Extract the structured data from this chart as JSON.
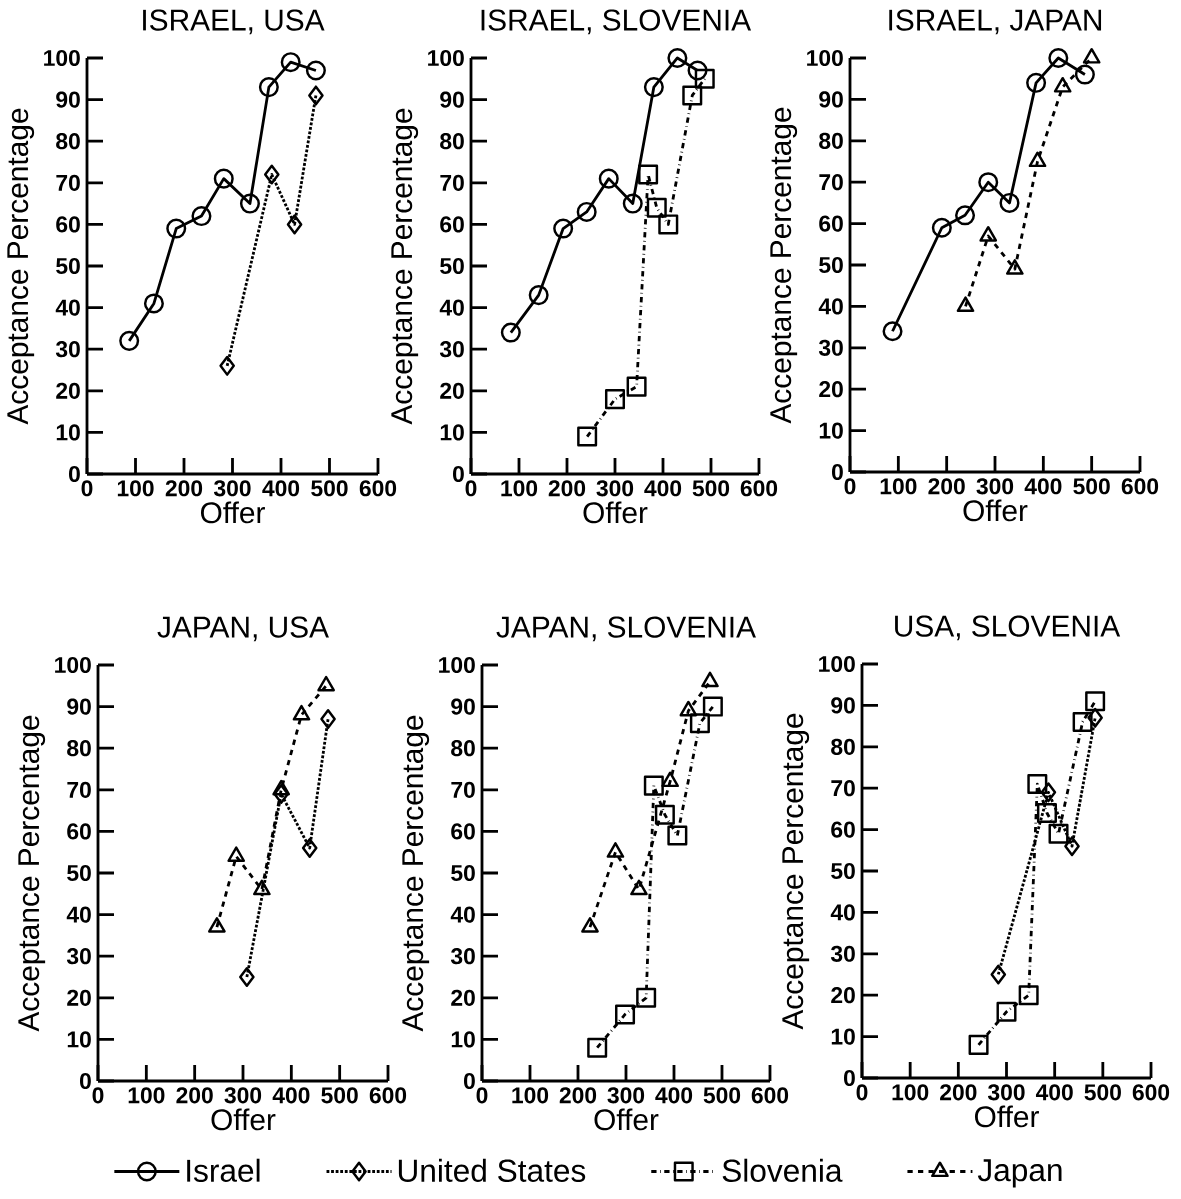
{
  "chart_data": [
    {
      "type": "line",
      "title": "ISRAEL, USA",
      "xlabel": "Offer",
      "ylabel": "Acceptance Percentage",
      "xlim": [
        0,
        600
      ],
      "ylim": [
        0,
        100
      ],
      "xticks": [
        0,
        100,
        200,
        300,
        400,
        500,
        600
      ],
      "yticks": [
        0,
        10,
        20,
        30,
        40,
        50,
        60,
        70,
        80,
        90,
        100
      ],
      "legend": "bottom",
      "series": [
        {
          "name": "Israel",
          "color": "#000000",
          "marker": "circle",
          "line_style": "solid",
          "x": [
            87,
            138,
            184,
            236,
            282,
            336,
            375,
            420,
            472
          ],
          "values": [
            32,
            41,
            59,
            62,
            71,
            65,
            93,
            99,
            97
          ]
        },
        {
          "name": "United States",
          "color": "#000000",
          "marker": "diamond",
          "line_style": "dotted",
          "x": [
            289,
            381,
            428,
            472
          ],
          "values": [
            26,
            72,
            60,
            91
          ]
        }
      ]
    },
    {
      "type": "line",
      "title": "ISRAEL, SLOVENIA",
      "xlabel": "Offer",
      "ylabel": "Acceptance Percentage",
      "xlim": [
        0,
        600
      ],
      "ylim": [
        0,
        100
      ],
      "xticks": [
        0,
        100,
        200,
        300,
        400,
        500,
        600
      ],
      "yticks": [
        0,
        10,
        20,
        30,
        40,
        50,
        60,
        70,
        80,
        90,
        100
      ],
      "legend": "bottom",
      "series": [
        {
          "name": "Israel",
          "color": "#000000",
          "marker": "circle",
          "line_style": "solid",
          "x": [
            83,
            141,
            192,
            241,
            287,
            337,
            381,
            430,
            472
          ],
          "values": [
            34,
            43,
            59,
            63,
            71,
            65,
            93,
            100,
            97
          ]
        },
        {
          "name": "Slovenia",
          "color": "#000000",
          "marker": "square",
          "line_style": "dashdot",
          "x": [
            242,
            300,
            345,
            369,
            387,
            411,
            461,
            487
          ],
          "values": [
            9,
            18,
            21,
            72,
            64,
            60,
            91,
            95
          ]
        }
      ]
    },
    {
      "type": "line",
      "title": "ISRAEL, JAPAN",
      "xlabel": "Offer",
      "ylabel": "Acceptance Percentage",
      "xlim": [
        0,
        600
      ],
      "ylim": [
        0,
        100
      ],
      "xticks": [
        0,
        100,
        200,
        300,
        400,
        500,
        600
      ],
      "yticks": [
        0,
        10,
        20,
        30,
        40,
        50,
        60,
        70,
        80,
        90,
        100
      ],
      "legend": "bottom",
      "series": [
        {
          "name": "Israel",
          "color": "#000000",
          "marker": "circle",
          "line_style": "solid",
          "x": [
            88,
            190,
            238,
            286,
            330,
            385,
            431,
            486
          ],
          "values": [
            34,
            59,
            62,
            70,
            65,
            94,
            100,
            96
          ]
        },
        {
          "name": "Japan",
          "color": "#000000",
          "marker": "triangle",
          "line_style": "dashed",
          "x": [
            239,
            286,
            341,
            388,
            440,
            500
          ],
          "values": [
            40,
            57,
            49,
            75,
            93,
            100
          ]
        }
      ]
    },
    {
      "type": "line",
      "title": "JAPAN, USA",
      "xlabel": "Offer",
      "ylabel": "Acceptance Percentage",
      "xlim": [
        0,
        600
      ],
      "ylim": [
        0,
        100
      ],
      "xticks": [
        0,
        100,
        200,
        300,
        400,
        500,
        600
      ],
      "yticks": [
        0,
        10,
        20,
        30,
        40,
        50,
        60,
        70,
        80,
        90,
        100
      ],
      "legend": "bottom",
      "series": [
        {
          "name": "Japan",
          "color": "#000000",
          "marker": "triangle",
          "line_style": "dashed",
          "x": [
            246,
            286,
            339,
            379,
            421,
            472
          ],
          "values": [
            37,
            54,
            46,
            70,
            88,
            95
          ]
        },
        {
          "name": "United States",
          "color": "#000000",
          "marker": "diamond",
          "line_style": "dotted",
          "x": [
            308,
            379,
            438,
            476
          ],
          "values": [
            25,
            69,
            56,
            87
          ]
        }
      ]
    },
    {
      "type": "line",
      "title": "JAPAN, SLOVENIA",
      "xlabel": "Offer",
      "ylabel": "Acceptance Percentage",
      "xlim": [
        0,
        600
      ],
      "ylim": [
        0,
        100
      ],
      "xticks": [
        0,
        100,
        200,
        300,
        400,
        500,
        600
      ],
      "yticks": [
        0,
        10,
        20,
        30,
        40,
        50,
        60,
        70,
        80,
        90,
        100
      ],
      "legend": "bottom",
      "series": [
        {
          "name": "Japan",
          "color": "#000000",
          "marker": "triangle",
          "line_style": "dashed",
          "x": [
            225,
            278,
            327,
            392,
            430,
            475
          ],
          "values": [
            37,
            55,
            46,
            72,
            89,
            96
          ]
        },
        {
          "name": "Slovenia",
          "color": "#000000",
          "marker": "square",
          "line_style": "dashdot",
          "x": [
            240,
            298,
            342,
            358,
            381,
            407,
            454,
            481
          ],
          "values": [
            8,
            16,
            20,
            71,
            64,
            59,
            86,
            90
          ]
        }
      ]
    },
    {
      "type": "line",
      "title": "USA, SLOVENIA",
      "xlabel": "Offer",
      "ylabel": "Acceptance Percentage",
      "xlim": [
        0,
        600
      ],
      "ylim": [
        0,
        100
      ],
      "xticks": [
        0,
        100,
        200,
        300,
        400,
        500,
        600
      ],
      "yticks": [
        0,
        10,
        20,
        30,
        40,
        50,
        60,
        70,
        80,
        90,
        100
      ],
      "legend": "bottom",
      "series": [
        {
          "name": "United States",
          "color": "#000000",
          "marker": "diamond",
          "line_style": "dotted",
          "x": [
            283,
            387,
            436,
            484
          ],
          "values": [
            25,
            69,
            56,
            87
          ]
        },
        {
          "name": "Slovenia",
          "color": "#000000",
          "marker": "square",
          "line_style": "dashdot",
          "x": [
            242,
            300,
            346,
            364,
            384,
            408,
            458,
            484
          ],
          "values": [
            8,
            16,
            20,
            71,
            64,
            59,
            86,
            91
          ]
        }
      ]
    }
  ]
}
